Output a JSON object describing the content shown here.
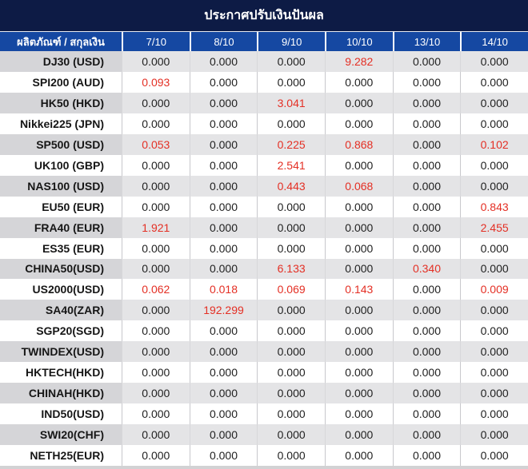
{
  "title": "ประกาศปรับเงินปันผล",
  "colors": {
    "header_dark": "#0d1b45",
    "header_blue": "#1548a2",
    "row_gray_product": "#d5d5d8",
    "row_gray_value": "#e4e4e6",
    "value_black": "#1f1f1f",
    "value_red": "#e42f24"
  },
  "table": {
    "product_header": "ผลิตภัณฑ์ / สกุลเงิน",
    "date_columns": [
      "7/10",
      "8/10",
      "9/10",
      "10/10",
      "13/10",
      "14/10"
    ],
    "rows": [
      {
        "product": "DJ30 (USD)",
        "values": [
          "0.000",
          "0.000",
          "0.000",
          "9.282",
          "0.000",
          "0.000"
        ],
        "red": [
          3
        ]
      },
      {
        "product": "SPI200 (AUD)",
        "values": [
          "0.093",
          "0.000",
          "0.000",
          "0.000",
          "0.000",
          "0.000"
        ],
        "red": [
          0
        ]
      },
      {
        "product": "HK50 (HKD)",
        "values": [
          "0.000",
          "0.000",
          "3.041",
          "0.000",
          "0.000",
          "0.000"
        ],
        "red": [
          2
        ]
      },
      {
        "product": "Nikkei225 (JPN)",
        "values": [
          "0.000",
          "0.000",
          "0.000",
          "0.000",
          "0.000",
          "0.000"
        ],
        "red": []
      },
      {
        "product": "SP500 (USD)",
        "values": [
          "0.053",
          "0.000",
          "0.225",
          "0.868",
          "0.000",
          "0.102"
        ],
        "red": [
          0,
          2,
          3,
          5
        ]
      },
      {
        "product": "UK100 (GBP)",
        "values": [
          "0.000",
          "0.000",
          "2.541",
          "0.000",
          "0.000",
          "0.000"
        ],
        "red": [
          2
        ]
      },
      {
        "product": "NAS100 (USD)",
        "values": [
          "0.000",
          "0.000",
          "0.443",
          "0.068",
          "0.000",
          "0.000"
        ],
        "red": [
          2,
          3
        ]
      },
      {
        "product": "EU50 (EUR)",
        "values": [
          "0.000",
          "0.000",
          "0.000",
          "0.000",
          "0.000",
          "0.843"
        ],
        "red": [
          5
        ]
      },
      {
        "product": "FRA40 (EUR)",
        "values": [
          "1.921",
          "0.000",
          "0.000",
          "0.000",
          "0.000",
          "2.455"
        ],
        "red": [
          0,
          5
        ]
      },
      {
        "product": "ES35 (EUR)",
        "values": [
          "0.000",
          "0.000",
          "0.000",
          "0.000",
          "0.000",
          "0.000"
        ],
        "red": []
      },
      {
        "product": "CHINA50(USD)",
        "values": [
          "0.000",
          "0.000",
          "6.133",
          "0.000",
          "0.340",
          "0.000"
        ],
        "red": [
          2,
          4
        ]
      },
      {
        "product": "US2000(USD)",
        "values": [
          "0.062",
          "0.018",
          "0.069",
          "0.143",
          "0.000",
          "0.009"
        ],
        "red": [
          0,
          1,
          2,
          3,
          5
        ]
      },
      {
        "product": "SA40(ZAR)",
        "values": [
          "0.000",
          "192.299",
          "0.000",
          "0.000",
          "0.000",
          "0.000"
        ],
        "red": [
          1
        ]
      },
      {
        "product": "SGP20(SGD)",
        "values": [
          "0.000",
          "0.000",
          "0.000",
          "0.000",
          "0.000",
          "0.000"
        ],
        "red": []
      },
      {
        "product": "TWINDEX(USD)",
        "values": [
          "0.000",
          "0.000",
          "0.000",
          "0.000",
          "0.000",
          "0.000"
        ],
        "red": []
      },
      {
        "product": "HKTECH(HKD)",
        "values": [
          "0.000",
          "0.000",
          "0.000",
          "0.000",
          "0.000",
          "0.000"
        ],
        "red": []
      },
      {
        "product": "CHINAH(HKD)",
        "values": [
          "0.000",
          "0.000",
          "0.000",
          "0.000",
          "0.000",
          "0.000"
        ],
        "red": []
      },
      {
        "product": "IND50(USD)",
        "values": [
          "0.000",
          "0.000",
          "0.000",
          "0.000",
          "0.000",
          "0.000"
        ],
        "red": []
      },
      {
        "product": "SWI20(CHF)",
        "values": [
          "0.000",
          "0.000",
          "0.000",
          "0.000",
          "0.000",
          "0.000"
        ],
        "red": []
      },
      {
        "product": "NETH25(EUR)",
        "values": [
          "0.000",
          "0.000",
          "0.000",
          "0.000",
          "0.000",
          "0.000"
        ],
        "red": []
      }
    ]
  }
}
